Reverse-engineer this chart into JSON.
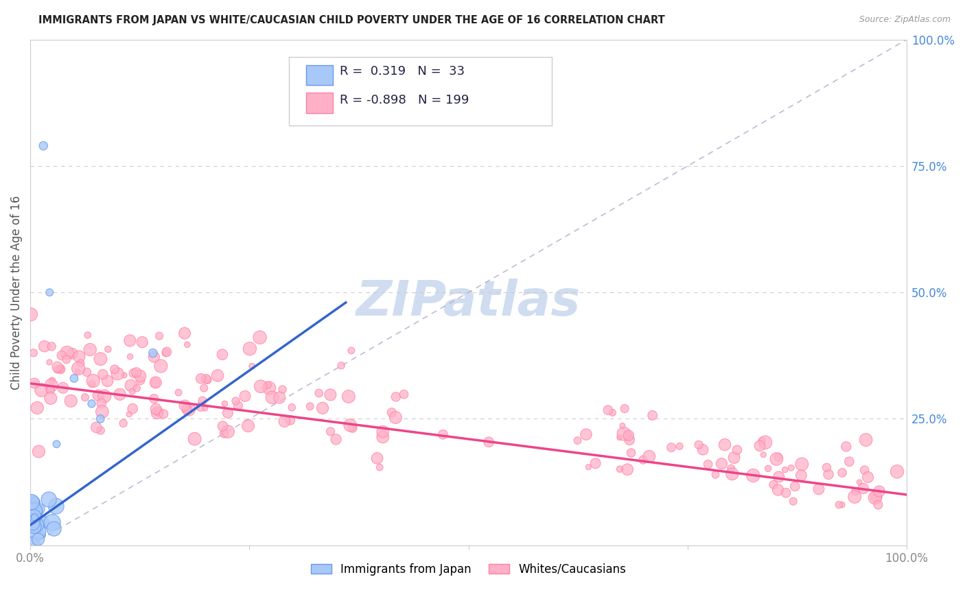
{
  "title": "IMMIGRANTS FROM JAPAN VS WHITE/CAUCASIAN CHILD POVERTY UNDER THE AGE OF 16 CORRELATION CHART",
  "source": "Source: ZipAtlas.com",
  "ylabel": "Child Poverty Under the Age of 16",
  "blue_R": 0.319,
  "blue_N": 33,
  "pink_R": -0.898,
  "pink_N": 199,
  "blue_color": "#a8c8f8",
  "pink_color": "#ffb0c8",
  "blue_edge_color": "#6699ee",
  "pink_edge_color": "#ff80a0",
  "blue_line_color": "#3366cc",
  "pink_line_color": "#ee4488",
  "ref_line_color": "#aaaacc",
  "title_color": "#222222",
  "source_color": "#999999",
  "right_label_color": "#4488dd",
  "tick_label_color": "#888888",
  "legend_label1": "Immigrants from Japan",
  "legend_label2": "Whites/Caucasians",
  "watermark_text": "ZIPatlas",
  "watermark_color": "#d0ddf0",
  "background_color": "#ffffff",
  "grid_color": "#cccccc",
  "border_color": "#cccccc",
  "blue_line_x0": 0.0,
  "blue_line_y0": 0.04,
  "blue_line_x1": 0.36,
  "blue_line_y1": 0.48,
  "pink_line_x0": 0.0,
  "pink_line_y0": 0.32,
  "pink_line_x1": 1.0,
  "pink_line_y1": 0.1,
  "xlim": [
    0,
    1
  ],
  "ylim": [
    0,
    1
  ],
  "right_yticks": [
    0.25,
    0.5,
    0.75,
    1.0
  ],
  "right_yticklabels": [
    "25.0%",
    "50.0%",
    "75.0%",
    "100.0%"
  ],
  "xtick_positions": [
    0,
    0.25,
    0.5,
    0.75,
    1.0
  ],
  "xtick_labels": [
    "0.0%",
    "",
    "",
    "",
    "100.0%"
  ]
}
